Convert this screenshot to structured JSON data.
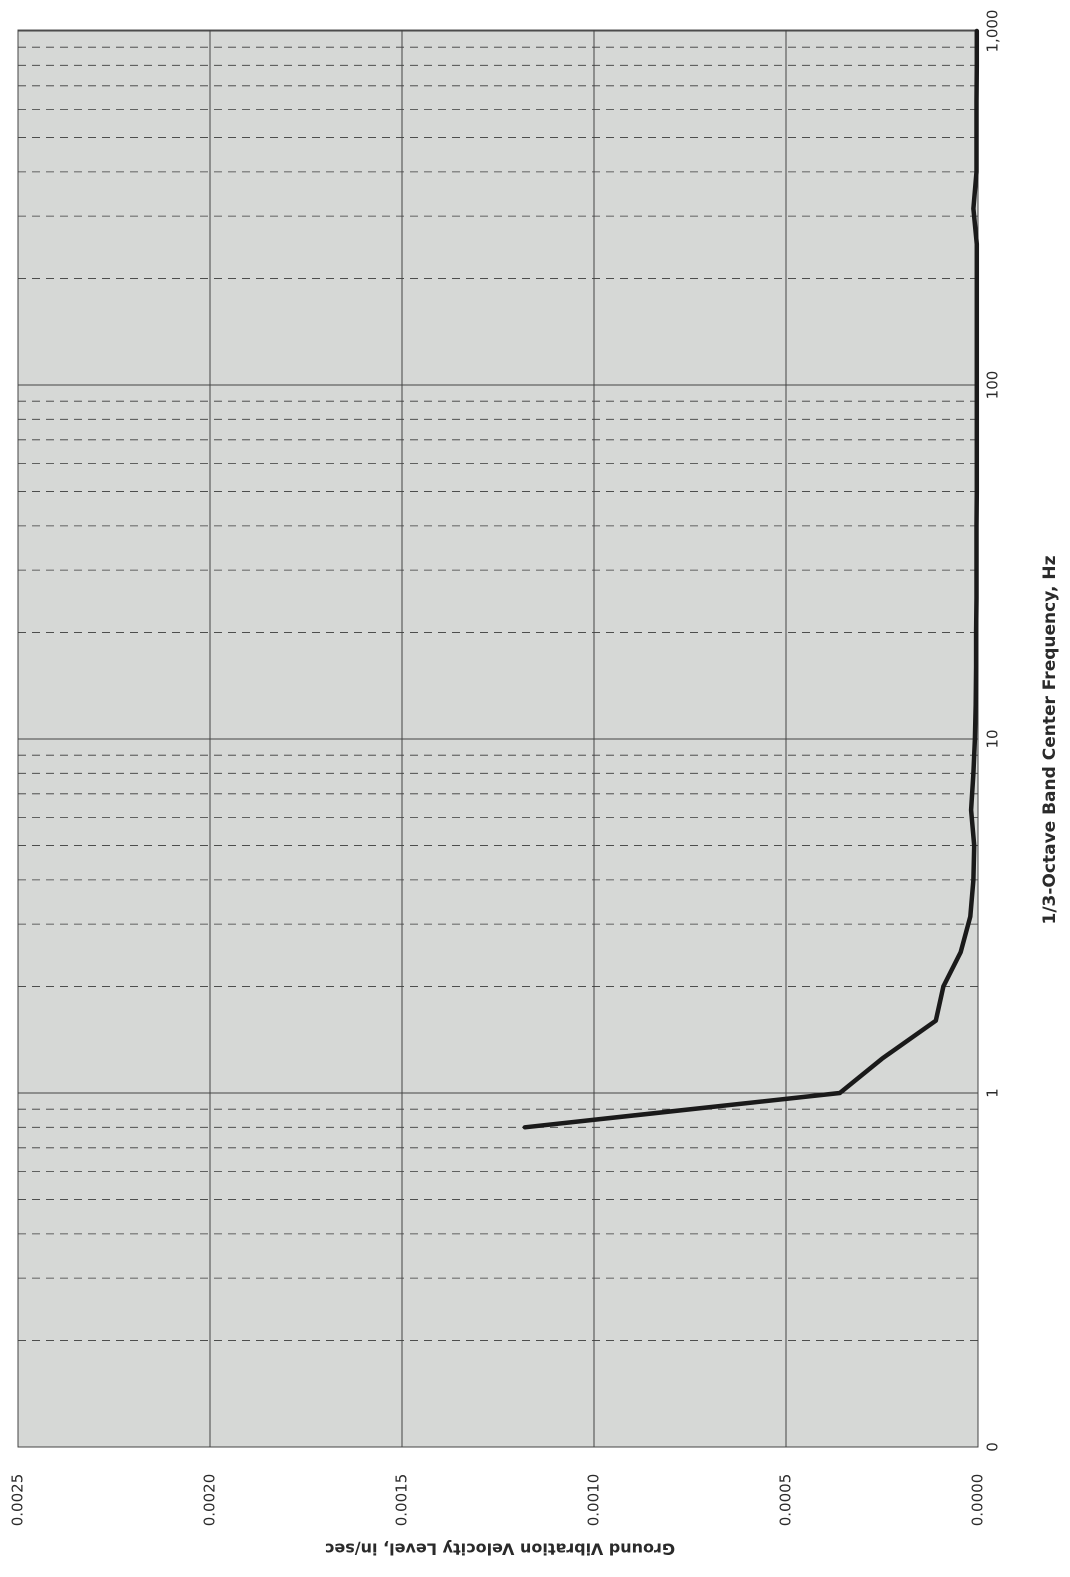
{
  "chart_data": {
    "type": "line",
    "orientation": "rotated 90° clockwise (page viewed sideways)",
    "xlabel": "1/3-Octave Band Center Frequency, Hz",
    "ylabel": "Ground Vibration Velocity Level, in/sec",
    "x_scale": "log",
    "x_ticks": [
      "0",
      "1",
      "10",
      "100",
      "1,000"
    ],
    "y_ticks": [
      "0.0000",
      "0.0005",
      "0.0010",
      "0.0015",
      "0.0020",
      "0.0025"
    ],
    "ylim": [
      0,
      0.0025
    ],
    "grid": true,
    "legend": "none",
    "line_color": "#1a1a1a",
    "plot_background": "#d6d8d6",
    "series": [
      {
        "x": [
          0.8,
          1,
          1.25,
          1.6,
          2,
          2.5,
          3.15,
          4,
          5,
          6.3,
          8,
          10,
          12.5,
          16,
          20,
          25,
          31.5,
          40,
          50,
          63,
          80,
          100,
          125,
          160,
          200,
          250,
          315,
          400,
          500,
          630,
          800,
          1000
        ],
        "y": [
          0.00118,
          0.00036,
          0.00025,
          0.00011,
          9e-05,
          4.5e-05,
          2e-05,
          1.2e-05,
          1e-05,
          1.8e-05,
          1.2e-05,
          8e-06,
          6e-06,
          5e-06,
          5e-06,
          4e-06,
          4e-06,
          4e-06,
          3e-06,
          3e-06,
          3e-06,
          3e-06,
          3e-06,
          3e-06,
          3e-06,
          3e-06,
          1.2e-05,
          4e-06,
          4e-06,
          4e-06,
          3e-06,
          3e-06
        ]
      }
    ]
  }
}
